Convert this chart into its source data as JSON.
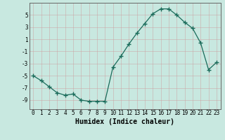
{
  "x": [
    0,
    1,
    2,
    3,
    4,
    5,
    6,
    7,
    8,
    9,
    10,
    11,
    12,
    13,
    14,
    15,
    16,
    17,
    18,
    19,
    20,
    21,
    22,
    23
  ],
  "y": [
    -5.0,
    -5.8,
    -6.8,
    -7.8,
    -8.2,
    -8.0,
    -9.0,
    -9.2,
    -9.2,
    -9.2,
    -3.6,
    -1.8,
    0.2,
    2.0,
    3.6,
    5.2,
    6.0,
    6.0,
    5.0,
    3.8,
    2.8,
    0.4,
    -4.0,
    -2.8
  ],
  "xlabel": "Humidex (Indice chaleur)",
  "xlim": [
    -0.5,
    23.5
  ],
  "ylim": [
    -10.5,
    7.0
  ],
  "yticks": [
    -9,
    -7,
    -5,
    -3,
    -1,
    1,
    3,
    5
  ],
  "xticks": [
    0,
    1,
    2,
    3,
    4,
    5,
    6,
    7,
    8,
    9,
    10,
    11,
    12,
    13,
    14,
    15,
    16,
    17,
    18,
    19,
    20,
    21,
    22,
    23
  ],
  "bg_color": "#c8e8e0",
  "grid_color_major": "#b0c8c0",
  "grid_color_minor": "#d8eeea",
  "line_color": "#1a6b5a",
  "marker": "+",
  "marker_size": 4.0,
  "xlabel_fontsize": 7,
  "tick_fontsize": 5.5
}
